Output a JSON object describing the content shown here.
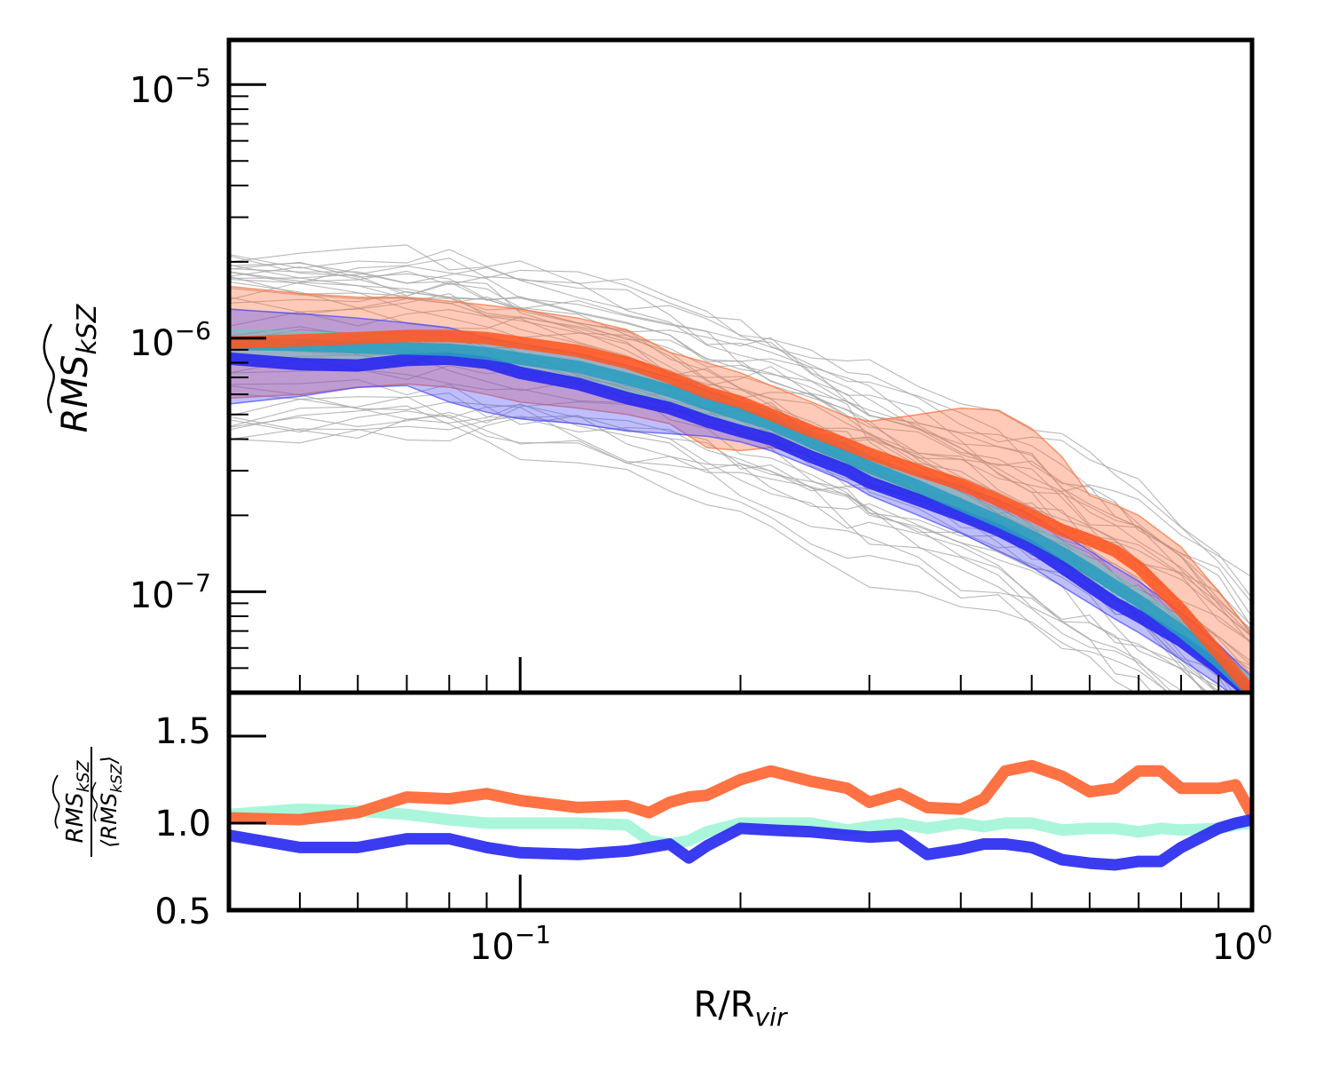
{
  "chart_data": [
    {
      "panel": "top",
      "type": "line",
      "scale": {
        "x": "log",
        "y": "log"
      },
      "xlim": [
        0.04,
        1.0
      ],
      "ylim": [
        4e-08,
        1.5e-05
      ],
      "ylabel": {
        "main": "RMS",
        "sub": "kSZ"
      },
      "y_ticks": [
        {
          "value": 1e-05,
          "base": "10",
          "exp": "−5"
        },
        {
          "value": 1e-06,
          "base": "10",
          "exp": "−6"
        },
        {
          "value": 1e-07,
          "base": "10",
          "exp": "−7"
        }
      ],
      "x": [
        0.04,
        0.05,
        0.06,
        0.07,
        0.08,
        0.09,
        0.1,
        0.12,
        0.14,
        0.16,
        0.18,
        0.2,
        0.22,
        0.25,
        0.28,
        0.3,
        0.35,
        0.4,
        0.45,
        0.5,
        0.55,
        0.6,
        0.65,
        0.7,
        0.8,
        0.9,
        1.0
      ],
      "series": [
        {
          "name": "orange",
          "color": "#ff5722",
          "values": [
            9.6e-07,
            9.8e-07,
            1e-06,
            1.02e-06,
            1.02e-06,
            1e-06,
            9.6e-07,
            8.9e-07,
            8e-07,
            7e-07,
            6.1e-07,
            5.6e-07,
            5e-07,
            4.3e-07,
            3.8e-07,
            3.5e-07,
            3e-07,
            2.65e-07,
            2.3e-07,
            2e-07,
            1.75e-07,
            1.6e-07,
            1.45e-07,
            1.25e-07,
            8.5e-08,
            5.7e-08,
            4e-08
          ]
        },
        {
          "name": "teal",
          "color": "#2a9dbf",
          "values": [
            9.5e-07,
            9.4e-07,
            9.2e-07,
            9.1e-07,
            9e-07,
            8.7e-07,
            8.3e-07,
            7.7e-07,
            6.9e-07,
            6.2e-07,
            5.5e-07,
            5e-07,
            4.6e-07,
            3.9e-07,
            3.4e-07,
            3.1e-07,
            2.6e-07,
            2.2e-07,
            1.9e-07,
            1.65e-07,
            1.42e-07,
            1.22e-07,
            1.05e-07,
            9.2e-08,
            7e-08,
            5.3e-08,
            4e-08
          ]
        },
        {
          "name": "blue",
          "color": "#2323f0",
          "values": [
            8.3e-07,
            7.9e-07,
            7.8e-07,
            8.2e-07,
            8.3e-07,
            8e-07,
            7.3e-07,
            6.6e-07,
            5.8e-07,
            5.3e-07,
            4.7e-07,
            4.3e-07,
            4e-07,
            3.4e-07,
            3e-07,
            2.7e-07,
            2.3e-07,
            2e-07,
            1.75e-07,
            1.5e-07,
            1.25e-07,
            1.05e-07,
            9e-08,
            8e-08,
            6.4e-08,
            5e-08,
            3.9e-08
          ]
        }
      ],
      "bands": [
        {
          "name": "orange-band",
          "color": "#ff6a33",
          "lower": [
            5.8e-07,
            6e-07,
            6.4e-07,
            6.6e-07,
            6.4e-07,
            6e-07,
            5.6e-07,
            5.3e-07,
            5e-07,
            4.6e-07,
            3.7e-07,
            3.6e-07,
            3.7e-07,
            3.5e-07,
            3.1e-07,
            2.8e-07,
            2.4e-07,
            2.1e-07,
            1.8e-07,
            1.55e-07,
            1.3e-07,
            1.15e-07,
            1e-07,
            8.8e-08,
            6.6e-08,
            4.8e-08,
            3.6e-08
          ],
          "upper": [
            1.6e-06,
            1.5e-06,
            1.45e-06,
            1.45e-06,
            1.4e-06,
            1.35e-06,
            1.3e-06,
            1.2e-06,
            1.08e-06,
            8.8e-07,
            8e-07,
            7.3e-07,
            6.5e-07,
            5.6e-07,
            4.9e-07,
            4.7e-07,
            5e-07,
            5.3e-07,
            5.2e-07,
            4.4e-07,
            3.4e-07,
            2.4e-07,
            2.2e-07,
            2e-07,
            1.5e-07,
            1e-07,
            6.8e-08
          ]
        },
        {
          "name": "blue-band",
          "color": "#4444ff",
          "lower": [
            5.5e-07,
            5.9e-07,
            6.4e-07,
            6.5e-07,
            5.6e-07,
            5.1e-07,
            4.8e-07,
            4.6e-07,
            4.3e-07,
            4.2e-07,
            4.1e-07,
            3.9e-07,
            3.6e-07,
            3.1e-07,
            2.7e-07,
            2.4e-07,
            2e-07,
            1.7e-07,
            1.45e-07,
            1.25e-07,
            1.05e-07,
            9e-08,
            7.8e-08,
            6.9e-08,
            5.4e-08,
            4.3e-08,
            3.4e-08
          ],
          "upper": [
            1.3e-06,
            1.25e-06,
            1.2e-06,
            1.15e-06,
            1.1e-06,
            1e-06,
            9.5e-07,
            8.7e-07,
            7.8e-07,
            7e-07,
            6.2e-07,
            5.6e-07,
            5.1e-07,
            4.3e-07,
            3.8e-07,
            3.4e-07,
            2.9e-07,
            2.6e-07,
            2.3e-07,
            2e-07,
            1.7e-07,
            1.45e-07,
            1.25e-07,
            1.1e-07,
            8.3e-08,
            6.2e-08,
            4.6e-08
          ]
        },
        {
          "name": "teal-band",
          "color": "#5cd6b0",
          "lower": [
            8.2e-07,
            8.3e-07,
            8.2e-07,
            8.2e-07,
            8e-07,
            7.8e-07,
            7.4e-07,
            6.9e-07,
            6.2e-07,
            5.6e-07,
            5e-07,
            4.5e-07,
            4.1e-07,
            3.5e-07,
            3.1e-07,
            2.8e-07,
            2.35e-07,
            2e-07,
            1.72e-07,
            1.48e-07,
            1.28e-07,
            1.1e-07,
            9.5e-08,
            8.3e-08,
            6.3e-08,
            4.8e-08,
            3.6e-08
          ],
          "upper": [
            1.08e-06,
            1.06e-06,
            1.04e-06,
            1.02e-06,
            1e-06,
            9.7e-07,
            9.3e-07,
            8.6e-07,
            7.7e-07,
            6.9e-07,
            6.1e-07,
            5.6e-07,
            5.1e-07,
            4.3e-07,
            3.8e-07,
            3.45e-07,
            2.9e-07,
            2.45e-07,
            2.1e-07,
            1.83e-07,
            1.58e-07,
            1.35e-07,
            1.17e-07,
            1.02e-07,
            7.8e-08,
            5.9e-08,
            4.5e-08
          ]
        }
      ],
      "background_curves": {
        "color": "#a6a6a6",
        "count": 40
      }
    },
    {
      "panel": "bottom",
      "type": "line",
      "scale": {
        "x": "log",
        "y": "linear"
      },
      "xlim": [
        0.04,
        1.0
      ],
      "ylim": [
        0.5,
        1.75
      ],
      "xlabel": {
        "main": "R/R",
        "sub": "vir"
      },
      "ylabel": {
        "num_main": "RMS",
        "num_sub": "kSZ",
        "den_main": "⟨RMS",
        "den_sub": "kSZ",
        "den_close": "⟩"
      },
      "y_ticks": [
        {
          "value": 1.5,
          "label": "1.5"
        },
        {
          "value": 1.0,
          "label": "1.0"
        },
        {
          "value": 0.5,
          "label": "0.5"
        }
      ],
      "x_ticks": [
        {
          "value": 0.1,
          "base": "10",
          "exp": "−1"
        },
        {
          "value": 1.0,
          "base": "10",
          "exp": "0"
        }
      ],
      "x": [
        0.04,
        0.05,
        0.06,
        0.07,
        0.08,
        0.09,
        0.1,
        0.12,
        0.14,
        0.15,
        0.16,
        0.17,
        0.18,
        0.2,
        0.22,
        0.25,
        0.28,
        0.3,
        0.33,
        0.36,
        0.4,
        0.43,
        0.46,
        0.5,
        0.55,
        0.6,
        0.65,
        0.7,
        0.75,
        0.8,
        0.9,
        0.95,
        1.0
      ],
      "series": [
        {
          "name": "teal-ratio",
          "color": "#a2f5d8",
          "values": [
            1.05,
            1.08,
            1.07,
            1.05,
            1.02,
            1.0,
            1.0,
            1.0,
            0.99,
            0.9,
            0.88,
            0.9,
            0.95,
            1.0,
            1.0,
            1.0,
            0.96,
            0.98,
            1.0,
            0.97,
            1.0,
            0.98,
            1.0,
            1.0,
            0.96,
            0.97,
            0.97,
            0.95,
            0.97,
            0.96,
            0.97,
            0.99,
            1.0
          ]
        },
        {
          "name": "orange-ratio",
          "color": "#ff6633",
          "values": [
            1.03,
            1.02,
            1.06,
            1.15,
            1.14,
            1.17,
            1.13,
            1.09,
            1.1,
            1.06,
            1.12,
            1.15,
            1.16,
            1.25,
            1.3,
            1.24,
            1.2,
            1.12,
            1.17,
            1.09,
            1.08,
            1.14,
            1.3,
            1.33,
            1.27,
            1.18,
            1.2,
            1.3,
            1.3,
            1.2,
            1.2,
            1.22,
            1.05
          ]
        },
        {
          "name": "blue-ratio",
          "color": "#2a2af0",
          "values": [
            0.93,
            0.86,
            0.86,
            0.91,
            0.91,
            0.86,
            0.83,
            0.82,
            0.84,
            0.86,
            0.88,
            0.8,
            0.87,
            0.97,
            0.96,
            0.95,
            0.93,
            0.92,
            0.93,
            0.82,
            0.85,
            0.88,
            0.88,
            0.86,
            0.79,
            0.77,
            0.76,
            0.78,
            0.78,
            0.86,
            0.97,
            1.0,
            1.02
          ]
        }
      ]
    }
  ]
}
